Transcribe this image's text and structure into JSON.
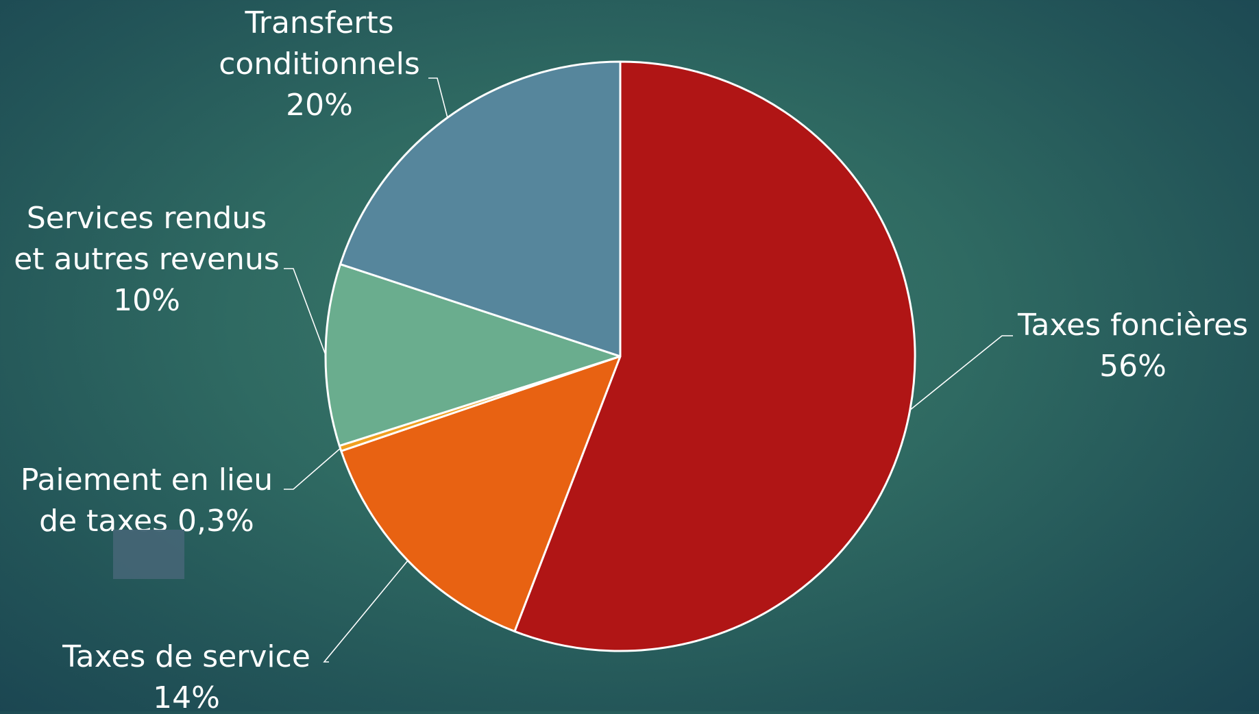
{
  "chart_data": {
    "type": "pie",
    "title": "",
    "slices": [
      {
        "label_lines": [
          "Taxes foncières",
          "56%"
        ],
        "label": "Taxes foncières",
        "value": 56,
        "value_label": "56%",
        "color": "#b01515"
      },
      {
        "label_lines": [
          "Taxes de service",
          "14%"
        ],
        "label": "Taxes de service",
        "value": 14,
        "value_label": "14%",
        "color": "#e86212"
      },
      {
        "label_lines": [
          "Paiement en lieu",
          "de taxes 0,3%"
        ],
        "label": "Paiement en lieu de taxes",
        "value": 0.3,
        "value_label": "0,3%",
        "color": "#f0a020"
      },
      {
        "label_lines": [
          "Services rendus",
          "et autres revenus",
          "10%"
        ],
        "label": "Services rendus et autres revenus",
        "value": 10,
        "value_label": "10%",
        "color": "#6aad8e"
      },
      {
        "label_lines": [
          "Transferts",
          "conditionnels",
          "20%"
        ],
        "label": "Transferts conditionnels",
        "value": 20,
        "value_label": "20%",
        "color": "#56869c"
      }
    ],
    "slice_border_color": "#ffffff",
    "leader_line_color": "#ffffff",
    "label_color": "#ffffff",
    "legend": "none"
  }
}
